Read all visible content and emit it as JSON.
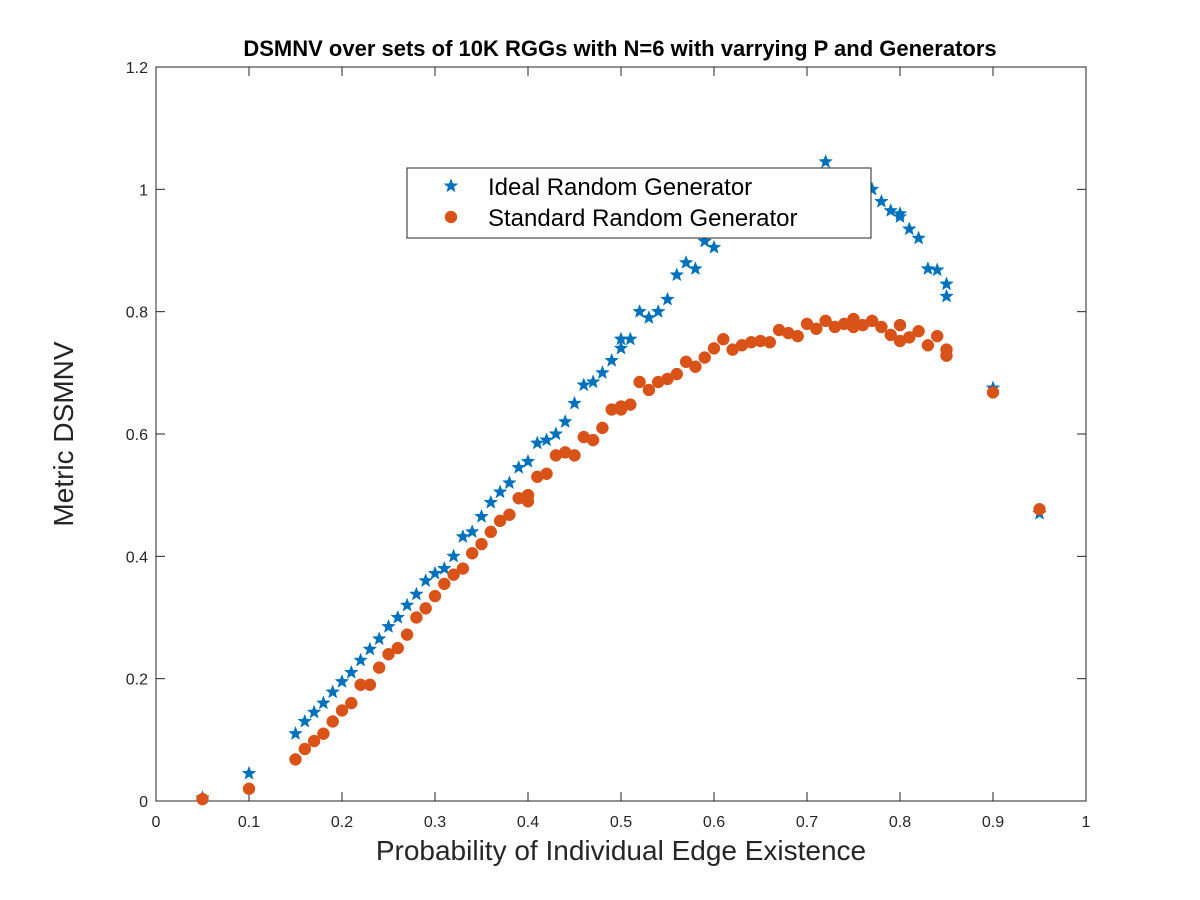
{
  "chart_data": {
    "type": "scatter",
    "title": "DSMNV over sets of 10K RGGs with N=6 with varrying P and Generators",
    "xlabel": "Probability of Individual Edge Existence",
    "ylabel": "Metric DSMNV",
    "xlim": [
      0,
      1
    ],
    "ylim": [
      0,
      1.2
    ],
    "xticks": [
      "0",
      "0.1",
      "0.2",
      "0.3",
      "0.4",
      "0.5",
      "0.6",
      "0.7",
      "0.8",
      "0.9",
      "1"
    ],
    "yticks": [
      "0",
      "0.2",
      "0.4",
      "0.6",
      "0.8",
      "1",
      "1.2"
    ],
    "grid": false,
    "legend_position": "top-center",
    "series": [
      {
        "name": "Ideal Random Generator",
        "marker": "star",
        "color": "#0072BD",
        "points": [
          [
            0.05,
            0.005
          ],
          [
            0.1,
            0.045
          ],
          [
            0.15,
            0.11
          ],
          [
            0.16,
            0.13
          ],
          [
            0.17,
            0.145
          ],
          [
            0.18,
            0.16
          ],
          [
            0.19,
            0.178
          ],
          [
            0.2,
            0.195
          ],
          [
            0.21,
            0.21
          ],
          [
            0.22,
            0.23
          ],
          [
            0.23,
            0.248
          ],
          [
            0.24,
            0.265
          ],
          [
            0.25,
            0.285
          ],
          [
            0.26,
            0.3
          ],
          [
            0.27,
            0.32
          ],
          [
            0.28,
            0.338
          ],
          [
            0.29,
            0.36
          ],
          [
            0.3,
            0.372
          ],
          [
            0.31,
            0.38
          ],
          [
            0.32,
            0.4
          ],
          [
            0.33,
            0.432
          ],
          [
            0.34,
            0.44
          ],
          [
            0.35,
            0.465
          ],
          [
            0.36,
            0.488
          ],
          [
            0.37,
            0.505
          ],
          [
            0.38,
            0.52
          ],
          [
            0.39,
            0.545
          ],
          [
            0.4,
            0.555
          ],
          [
            0.41,
            0.585
          ],
          [
            0.42,
            0.59
          ],
          [
            0.43,
            0.6
          ],
          [
            0.44,
            0.62
          ],
          [
            0.45,
            0.65
          ],
          [
            0.46,
            0.68
          ],
          [
            0.47,
            0.685
          ],
          [
            0.48,
            0.7
          ],
          [
            0.49,
            0.72
          ],
          [
            0.5,
            0.74
          ],
          [
            0.5,
            0.755
          ],
          [
            0.51,
            0.755
          ],
          [
            0.52,
            0.8
          ],
          [
            0.53,
            0.79
          ],
          [
            0.54,
            0.8
          ],
          [
            0.55,
            0.82
          ],
          [
            0.56,
            0.86
          ],
          [
            0.57,
            0.88
          ],
          [
            0.58,
            0.87
          ],
          [
            0.59,
            0.915
          ],
          [
            0.6,
            0.905
          ],
          [
            0.61,
            0.93
          ],
          [
            0.62,
            0.96
          ],
          [
            0.63,
            0.985
          ],
          [
            0.64,
            1.0
          ],
          [
            0.65,
            0.975
          ],
          [
            0.66,
            1.0
          ],
          [
            0.67,
            0.99
          ],
          [
            0.68,
            0.995
          ],
          [
            0.69,
            1.0
          ],
          [
            0.7,
            1.02
          ],
          [
            0.71,
            1.01
          ],
          [
            0.72,
            1.045
          ],
          [
            0.73,
            0.995
          ],
          [
            0.74,
            1.0
          ],
          [
            0.75,
            1.0
          ],
          [
            0.76,
            1.02
          ],
          [
            0.77,
            1.0
          ],
          [
            0.78,
            0.98
          ],
          [
            0.79,
            0.965
          ],
          [
            0.8,
            0.96
          ],
          [
            0.8,
            0.955
          ],
          [
            0.81,
            0.935
          ],
          [
            0.82,
            0.92
          ],
          [
            0.83,
            0.87
          ],
          [
            0.84,
            0.868
          ],
          [
            0.85,
            0.845
          ],
          [
            0.85,
            0.825
          ],
          [
            0.9,
            0.675
          ],
          [
            0.95,
            0.47
          ]
        ]
      },
      {
        "name": "Standard Random Generator",
        "marker": "circle",
        "color": "#D95319",
        "points": [
          [
            0.05,
            0.003
          ],
          [
            0.1,
            0.02
          ],
          [
            0.15,
            0.068
          ],
          [
            0.16,
            0.085
          ],
          [
            0.17,
            0.098
          ],
          [
            0.18,
            0.11
          ],
          [
            0.19,
            0.13
          ],
          [
            0.2,
            0.148
          ],
          [
            0.21,
            0.16
          ],
          [
            0.22,
            0.19
          ],
          [
            0.23,
            0.19
          ],
          [
            0.24,
            0.218
          ],
          [
            0.25,
            0.24
          ],
          [
            0.26,
            0.25
          ],
          [
            0.27,
            0.272
          ],
          [
            0.28,
            0.3
          ],
          [
            0.29,
            0.315
          ],
          [
            0.3,
            0.335
          ],
          [
            0.31,
            0.355
          ],
          [
            0.32,
            0.37
          ],
          [
            0.33,
            0.38
          ],
          [
            0.34,
            0.405
          ],
          [
            0.35,
            0.42
          ],
          [
            0.36,
            0.44
          ],
          [
            0.37,
            0.458
          ],
          [
            0.38,
            0.468
          ],
          [
            0.39,
            0.495
          ],
          [
            0.4,
            0.49
          ],
          [
            0.4,
            0.5
          ],
          [
            0.41,
            0.53
          ],
          [
            0.42,
            0.535
          ],
          [
            0.43,
            0.565
          ],
          [
            0.44,
            0.57
          ],
          [
            0.45,
            0.565
          ],
          [
            0.46,
            0.595
          ],
          [
            0.47,
            0.59
          ],
          [
            0.48,
            0.61
          ],
          [
            0.49,
            0.64
          ],
          [
            0.5,
            0.64
          ],
          [
            0.5,
            0.645
          ],
          [
            0.51,
            0.648
          ],
          [
            0.52,
            0.685
          ],
          [
            0.53,
            0.672
          ],
          [
            0.54,
            0.685
          ],
          [
            0.55,
            0.69
          ],
          [
            0.56,
            0.698
          ],
          [
            0.57,
            0.718
          ],
          [
            0.58,
            0.71
          ],
          [
            0.59,
            0.725
          ],
          [
            0.6,
            0.74
          ],
          [
            0.61,
            0.755
          ],
          [
            0.62,
            0.738
          ],
          [
            0.63,
            0.745
          ],
          [
            0.64,
            0.75
          ],
          [
            0.65,
            0.752
          ],
          [
            0.66,
            0.75
          ],
          [
            0.67,
            0.77
          ],
          [
            0.68,
            0.765
          ],
          [
            0.69,
            0.76
          ],
          [
            0.7,
            0.78
          ],
          [
            0.71,
            0.772
          ],
          [
            0.72,
            0.785
          ],
          [
            0.73,
            0.775
          ],
          [
            0.74,
            0.78
          ],
          [
            0.75,
            0.788
          ],
          [
            0.75,
            0.775
          ],
          [
            0.76,
            0.778
          ],
          [
            0.77,
            0.785
          ],
          [
            0.78,
            0.775
          ],
          [
            0.79,
            0.762
          ],
          [
            0.8,
            0.778
          ],
          [
            0.8,
            0.752
          ],
          [
            0.81,
            0.758
          ],
          [
            0.82,
            0.768
          ],
          [
            0.83,
            0.745
          ],
          [
            0.84,
            0.76
          ],
          [
            0.85,
            0.738
          ],
          [
            0.85,
            0.728
          ],
          [
            0.9,
            0.668
          ],
          [
            0.95,
            0.477
          ]
        ]
      }
    ]
  }
}
